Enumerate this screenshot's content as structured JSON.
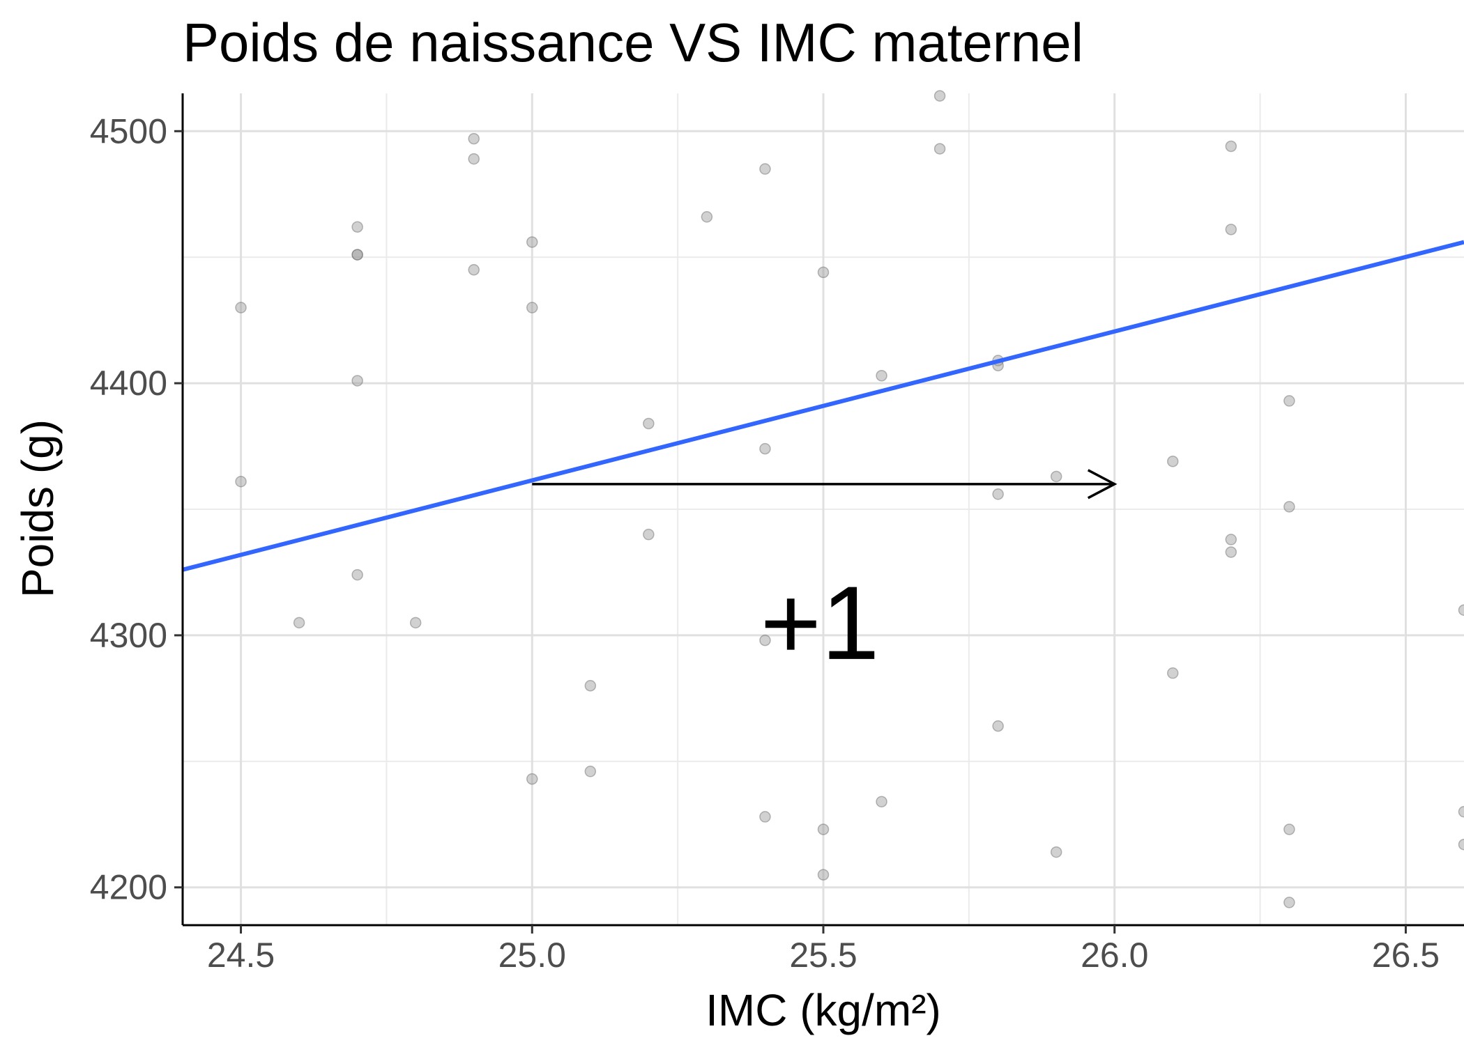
{
  "chart_data": {
    "type": "scatter",
    "title": "Poids de naissance VS IMC maternel",
    "xlabel": "IMC (kg/m²)",
    "ylabel": "Poids (g)",
    "xlim": [
      24.4,
      26.6
    ],
    "ylim": [
      4185,
      4515
    ],
    "x_ticks": [
      24.5,
      25.0,
      25.5,
      26.0,
      26.5
    ],
    "x_tick_labels": [
      "24.5",
      "25.0",
      "25.5",
      "26.0",
      "26.5"
    ],
    "y_ticks": [
      4200,
      4300,
      4400,
      4500
    ],
    "y_tick_labels": [
      "4200",
      "4300",
      "4400",
      "4500"
    ],
    "grid": true,
    "colors": {
      "points": "#999999",
      "line": "#3366ff",
      "arrow": "#000000"
    },
    "points": [
      {
        "x": 24.5,
        "y": 4430
      },
      {
        "x": 24.5,
        "y": 4361
      },
      {
        "x": 24.6,
        "y": 4305
      },
      {
        "x": 24.7,
        "y": 4462
      },
      {
        "x": 24.7,
        "y": 4451
      },
      {
        "x": 24.7,
        "y": 4451
      },
      {
        "x": 24.7,
        "y": 4401
      },
      {
        "x": 24.7,
        "y": 4324
      },
      {
        "x": 24.8,
        "y": 4305
      },
      {
        "x": 24.9,
        "y": 4497
      },
      {
        "x": 24.9,
        "y": 4489
      },
      {
        "x": 24.9,
        "y": 4445
      },
      {
        "x": 25.0,
        "y": 4456
      },
      {
        "x": 25.0,
        "y": 4430
      },
      {
        "x": 25.0,
        "y": 4243
      },
      {
        "x": 25.1,
        "y": 4280
      },
      {
        "x": 25.1,
        "y": 4246
      },
      {
        "x": 25.2,
        "y": 4384
      },
      {
        "x": 25.2,
        "y": 4340
      },
      {
        "x": 25.3,
        "y": 4466
      },
      {
        "x": 25.4,
        "y": 4485
      },
      {
        "x": 25.4,
        "y": 4374
      },
      {
        "x": 25.4,
        "y": 4298
      },
      {
        "x": 25.4,
        "y": 4228
      },
      {
        "x": 25.5,
        "y": 4444
      },
      {
        "x": 25.5,
        "y": 4223
      },
      {
        "x": 25.5,
        "y": 4205
      },
      {
        "x": 25.6,
        "y": 4403
      },
      {
        "x": 25.6,
        "y": 4234
      },
      {
        "x": 25.7,
        "y": 4514
      },
      {
        "x": 25.7,
        "y": 4493
      },
      {
        "x": 25.8,
        "y": 4409
      },
      {
        "x": 25.8,
        "y": 4407
      },
      {
        "x": 25.8,
        "y": 4356
      },
      {
        "x": 25.8,
        "y": 4264
      },
      {
        "x": 25.9,
        "y": 4363
      },
      {
        "x": 25.9,
        "y": 4214
      },
      {
        "x": 26.1,
        "y": 4369
      },
      {
        "x": 26.1,
        "y": 4285
      },
      {
        "x": 26.2,
        "y": 4494
      },
      {
        "x": 26.2,
        "y": 4461
      },
      {
        "x": 26.2,
        "y": 4338
      },
      {
        "x": 26.2,
        "y": 4333
      },
      {
        "x": 26.3,
        "y": 4393
      },
      {
        "x": 26.3,
        "y": 4351
      },
      {
        "x": 26.3,
        "y": 4223
      },
      {
        "x": 26.3,
        "y": 4194
      },
      {
        "x": 26.6,
        "y": 4310
      },
      {
        "x": 26.6,
        "y": 4230
      },
      {
        "x": 26.6,
        "y": 4217
      }
    ],
    "regression_line": {
      "x": [
        24.4,
        26.6
      ],
      "y": [
        4326,
        4456
      ]
    },
    "annotations": [
      {
        "type": "arrow",
        "x_start": 25.0,
        "x_end": 26.0,
        "y": 4360
      },
      {
        "type": "text",
        "text": "+1",
        "x": 25.5,
        "y": 4305
      }
    ]
  }
}
